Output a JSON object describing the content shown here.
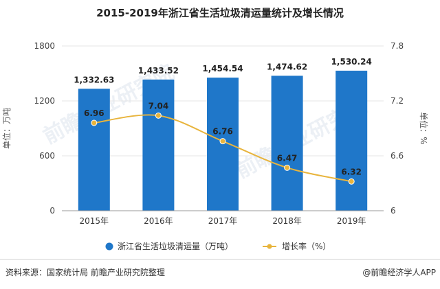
{
  "chart_data": {
    "type": "bar+line",
    "title": "2015-2019年浙江省生活垃圾清运量统计及增长情况",
    "categories": [
      "2015年",
      "2016年",
      "2017年",
      "2018年",
      "2019年"
    ],
    "series": [
      {
        "name": "浙江省生活垃圾清运量（万吨）",
        "type": "bar",
        "axis": "left",
        "values": [
          1332.63,
          1433.52,
          1454.54,
          1474.62,
          1530.24
        ],
        "labels": [
          "1,332.63",
          "1,433.52",
          "1,454.54",
          "1,474.62",
          "1,530.24"
        ],
        "color": "#1f77c9"
      },
      {
        "name": "增长率（%）",
        "type": "line",
        "axis": "right",
        "values": [
          6.96,
          7.04,
          6.76,
          6.47,
          6.32
        ],
        "labels": [
          "6.96",
          "7.04",
          "6.76",
          "6.47",
          "6.32"
        ],
        "color": "#e8b43c"
      }
    ],
    "ylabel_left": "单位：万吨",
    "ylabel_right": "单位：%",
    "ylim_left": [
      0,
      1800
    ],
    "yticks_left": [
      "0",
      "600",
      "1200",
      "1800"
    ],
    "ylim_right": [
      6,
      7.8
    ],
    "yticks_right": [
      "6",
      "6.6",
      "7.2",
      "7.8"
    ],
    "legend_position": "bottom"
  },
  "footer": {
    "source": "资料来源：国家统计局 前瞻产业研究院整理",
    "brand": "@前瞻经济学人APP"
  },
  "watermark": {
    "text": "前瞻产业研究院"
  }
}
